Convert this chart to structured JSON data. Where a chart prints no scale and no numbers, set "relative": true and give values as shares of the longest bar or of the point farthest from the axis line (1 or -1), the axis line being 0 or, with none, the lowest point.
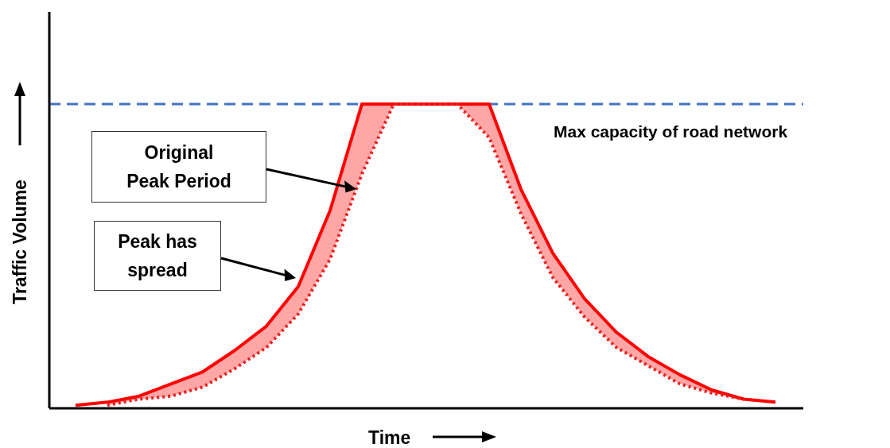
{
  "chart_data": {
    "type": "line",
    "relative": true,
    "xlabel": "Time",
    "ylabel": "Traffic Volume",
    "marker": "none",
    "categories": [
      null,
      null,
      null,
      null,
      null,
      null,
      null,
      null,
      null,
      null,
      null,
      null,
      null,
      null,
      null,
      null,
      null,
      null,
      null,
      null,
      null,
      null,
      null
    ],
    "series": [
      {
        "color": "#ff0000",
        "line_style": "solid",
        "values": [
          0.01,
          0.02,
          0.04,
          0.08,
          0.12,
          0.19,
          0.27,
          0.4,
          0.65,
          1,
          1,
          1,
          1,
          1,
          0.72,
          0.51,
          0.36,
          0.25,
          0.17,
          0.11,
          0.06,
          0.03,
          0.02
        ],
        "lower": [
          null,
          0.01,
          0.03,
          0.04,
          0.07,
          0.13,
          0.2,
          0.31,
          0.49,
          0.77,
          1,
          1,
          1,
          0.89,
          0.64,
          0.43,
          0.3,
          0.2,
          0.14,
          0.08,
          0.05,
          0.03,
          null
        ],
        "upper": [
          null,
          0.02,
          0.04,
          0.08,
          0.12,
          0.19,
          0.27,
          0.4,
          0.65,
          1,
          1,
          1,
          1,
          1,
          0.72,
          0.51,
          0.36,
          0.25,
          0.17,
          0.11,
          0.06,
          0.03,
          null
        ]
      },
      {
        "color": "#e8201f",
        "line_style": "dotted",
        "values": [
          null,
          0.01,
          0.03,
          0.04,
          0.07,
          0.13,
          0.2,
          0.31,
          0.49,
          0.77,
          1,
          1,
          1,
          0.89,
          0.64,
          0.43,
          0.3,
          0.2,
          0.14,
          0.08,
          0.05,
          0.03,
          null
        ]
      }
    ],
    "ref_lines": [
      {
        "axis": "y",
        "value": 1,
        "label": "Max capacity of road network",
        "color": "#4472c4",
        "line_style": "dashed"
      }
    ],
    "annotations": [
      "Original Peak Period",
      "Peak has spread"
    ]
  }
}
